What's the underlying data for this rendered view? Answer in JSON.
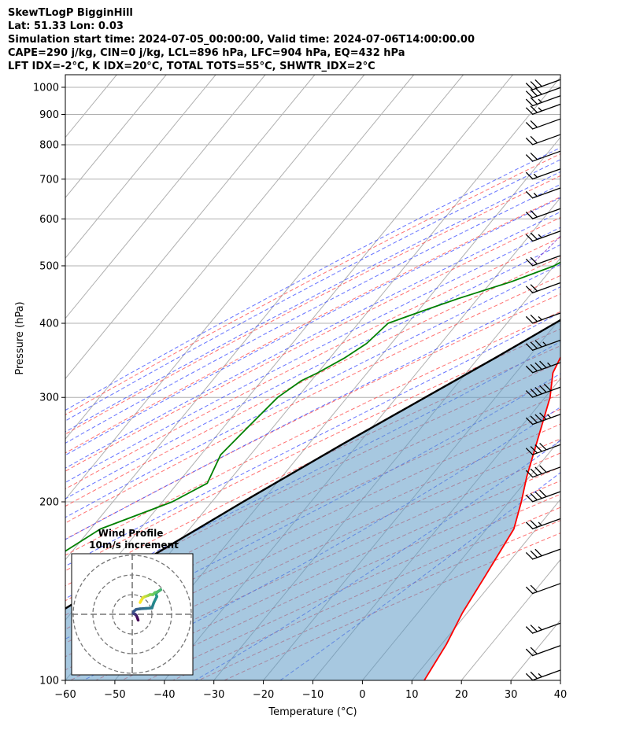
{
  "header": {
    "line1": "SkewTLogP BigginHill",
    "line2": "Lat: 51.33   Lon: 0.03",
    "line3": "Simulation start time: 2024-07-05_00:00:00, Valid time: 2024-07-06T14:00:00.00",
    "line4": "CAPE=290 j/kg, CIN=0 j/kg, LCL=896 hPa, LFC=904 hPa, EQ=432 hPa",
    "line5": "LFT IDX=-2°C, K IDX=20°C, TOTAL TOTS=55°C, SHWTR_IDX=2°C"
  },
  "chart_data": [
    {
      "type": "line",
      "subtype": "skew-t log-p",
      "xlabel": "Temperature (°C)",
      "ylabel": "Pressure (hPa)",
      "xlim": [
        -60,
        40
      ],
      "ylim": [
        1050,
        100
      ],
      "y_scale": "log",
      "x_ticks": [
        "−60",
        "−50",
        "−40",
        "−30",
        "−20",
        "−10",
        "0",
        "10",
        "20",
        "30",
        "40"
      ],
      "x_tick_values": [
        -60,
        -50,
        -40,
        -30,
        -20,
        -10,
        0,
        10,
        20,
        30,
        40
      ],
      "y_ticks": [
        1000,
        900,
        800,
        700,
        600,
        500,
        400,
        300,
        200,
        100
      ],
      "grid": true,
      "colors": {
        "temperature": "#ff0000",
        "dewpoint": "#008000",
        "parcel": "#000000",
        "cape_fill": "#e06666",
        "cin_fill": "#5f9bc6",
        "dry_adiabat": "#ff4d4d",
        "moist_adiabat": "#3344ff",
        "mixing_ratio": "#7f33cc"
      },
      "series": [
        {
          "key": "temperature",
          "pressure": [
            985,
            950,
            900,
            850,
            800,
            700,
            600,
            500,
            470,
            450,
            400,
            350,
            330,
            300,
            250,
            220,
            200,
            180,
            150,
            130,
            115,
            100
          ],
          "temperature": [
            16,
            13,
            10.5,
            8.5,
            6,
            0,
            -6,
            -12.5,
            -14.5,
            -14.7,
            -14.5,
            -13.5,
            -12.5,
            -9,
            -4,
            -0.5,
            2.5,
            5.5,
            7.5,
            9,
            11,
            12.5
          ]
        },
        {
          "key": "dewpoint",
          "pressure": [
            985,
            950,
            900,
            850,
            800,
            750,
            700,
            650,
            600,
            550,
            500,
            470,
            440,
            420,
            400,
            370,
            350,
            330,
            320,
            300,
            270,
            240,
            215,
            200,
            180,
            140,
            100
          ],
          "temperature": [
            10,
            10,
            9.5,
            6,
            2,
            -4,
            -10,
            -17,
            -21,
            -25,
            -30,
            -36,
            -44,
            -49,
            -54,
            -55,
            -57,
            -60,
            -62,
            -64,
            -65,
            -66,
            -64,
            -68,
            -78,
            -88,
            -100
          ]
        },
        {
          "key": "parcel",
          "pressure": [
            985,
            950,
            920,
            896,
            850,
            800,
            700,
            600,
            500,
            432,
            400,
            350,
            300,
            250,
            200,
            150,
            100
          ],
          "temperature": [
            16,
            13.5,
            11.5,
            10.2,
            8.3,
            6.7,
            1.8,
            -4.1,
            -11.6,
            -16.5,
            -20.3,
            -26.6,
            -34.2,
            -43.2,
            -53.7,
            -66.6,
            -83.6
          ]
        }
      ],
      "wind_barbs": {
        "pressure": [
          990,
          960,
          930,
          900,
          850,
          800,
          750,
          700,
          650,
          600,
          550,
          500,
          450,
          400,
          360,
          330,
          300,
          270,
          240,
          220,
          200,
          180,
          160,
          140,
          120,
          110,
          100
        ],
        "speed_kt": [
          30,
          30,
          25,
          25,
          20,
          20,
          20,
          15,
          15,
          20,
          25,
          20,
          20,
          25,
          35,
          45,
          50,
          45,
          40,
          40,
          40,
          25,
          30,
          20,
          25,
          20,
          25
        ]
      }
    },
    {
      "type": "line",
      "subtype": "hodograph",
      "title": "Wind Profile",
      "subtitle": "10m/s increment",
      "u": [
        3.0,
        2.5,
        2.0,
        1.5,
        1.0,
        0.5,
        0.8,
        2.0,
        4.0,
        7.0,
        10.0,
        11.0,
        12.5,
        12.0,
        13.0,
        14.5,
        13.0,
        11.5,
        10.5,
        9.0,
        8.0,
        6.5,
        5.5,
        4.5,
        4.0
      ],
      "v": [
        -3.0,
        -1.5,
        -0.5,
        0.0,
        0.2,
        0.5,
        1.5,
        2.5,
        2.8,
        3.0,
        3.2,
        6.0,
        9.0,
        10.5,
        11.5,
        12.5,
        11.5,
        11.0,
        10.0,
        10.0,
        9.5,
        9.0,
        8.5,
        7.0,
        6.0
      ],
      "rings": [
        10,
        20,
        30
      ],
      "colormap": "viridis"
    }
  ]
}
